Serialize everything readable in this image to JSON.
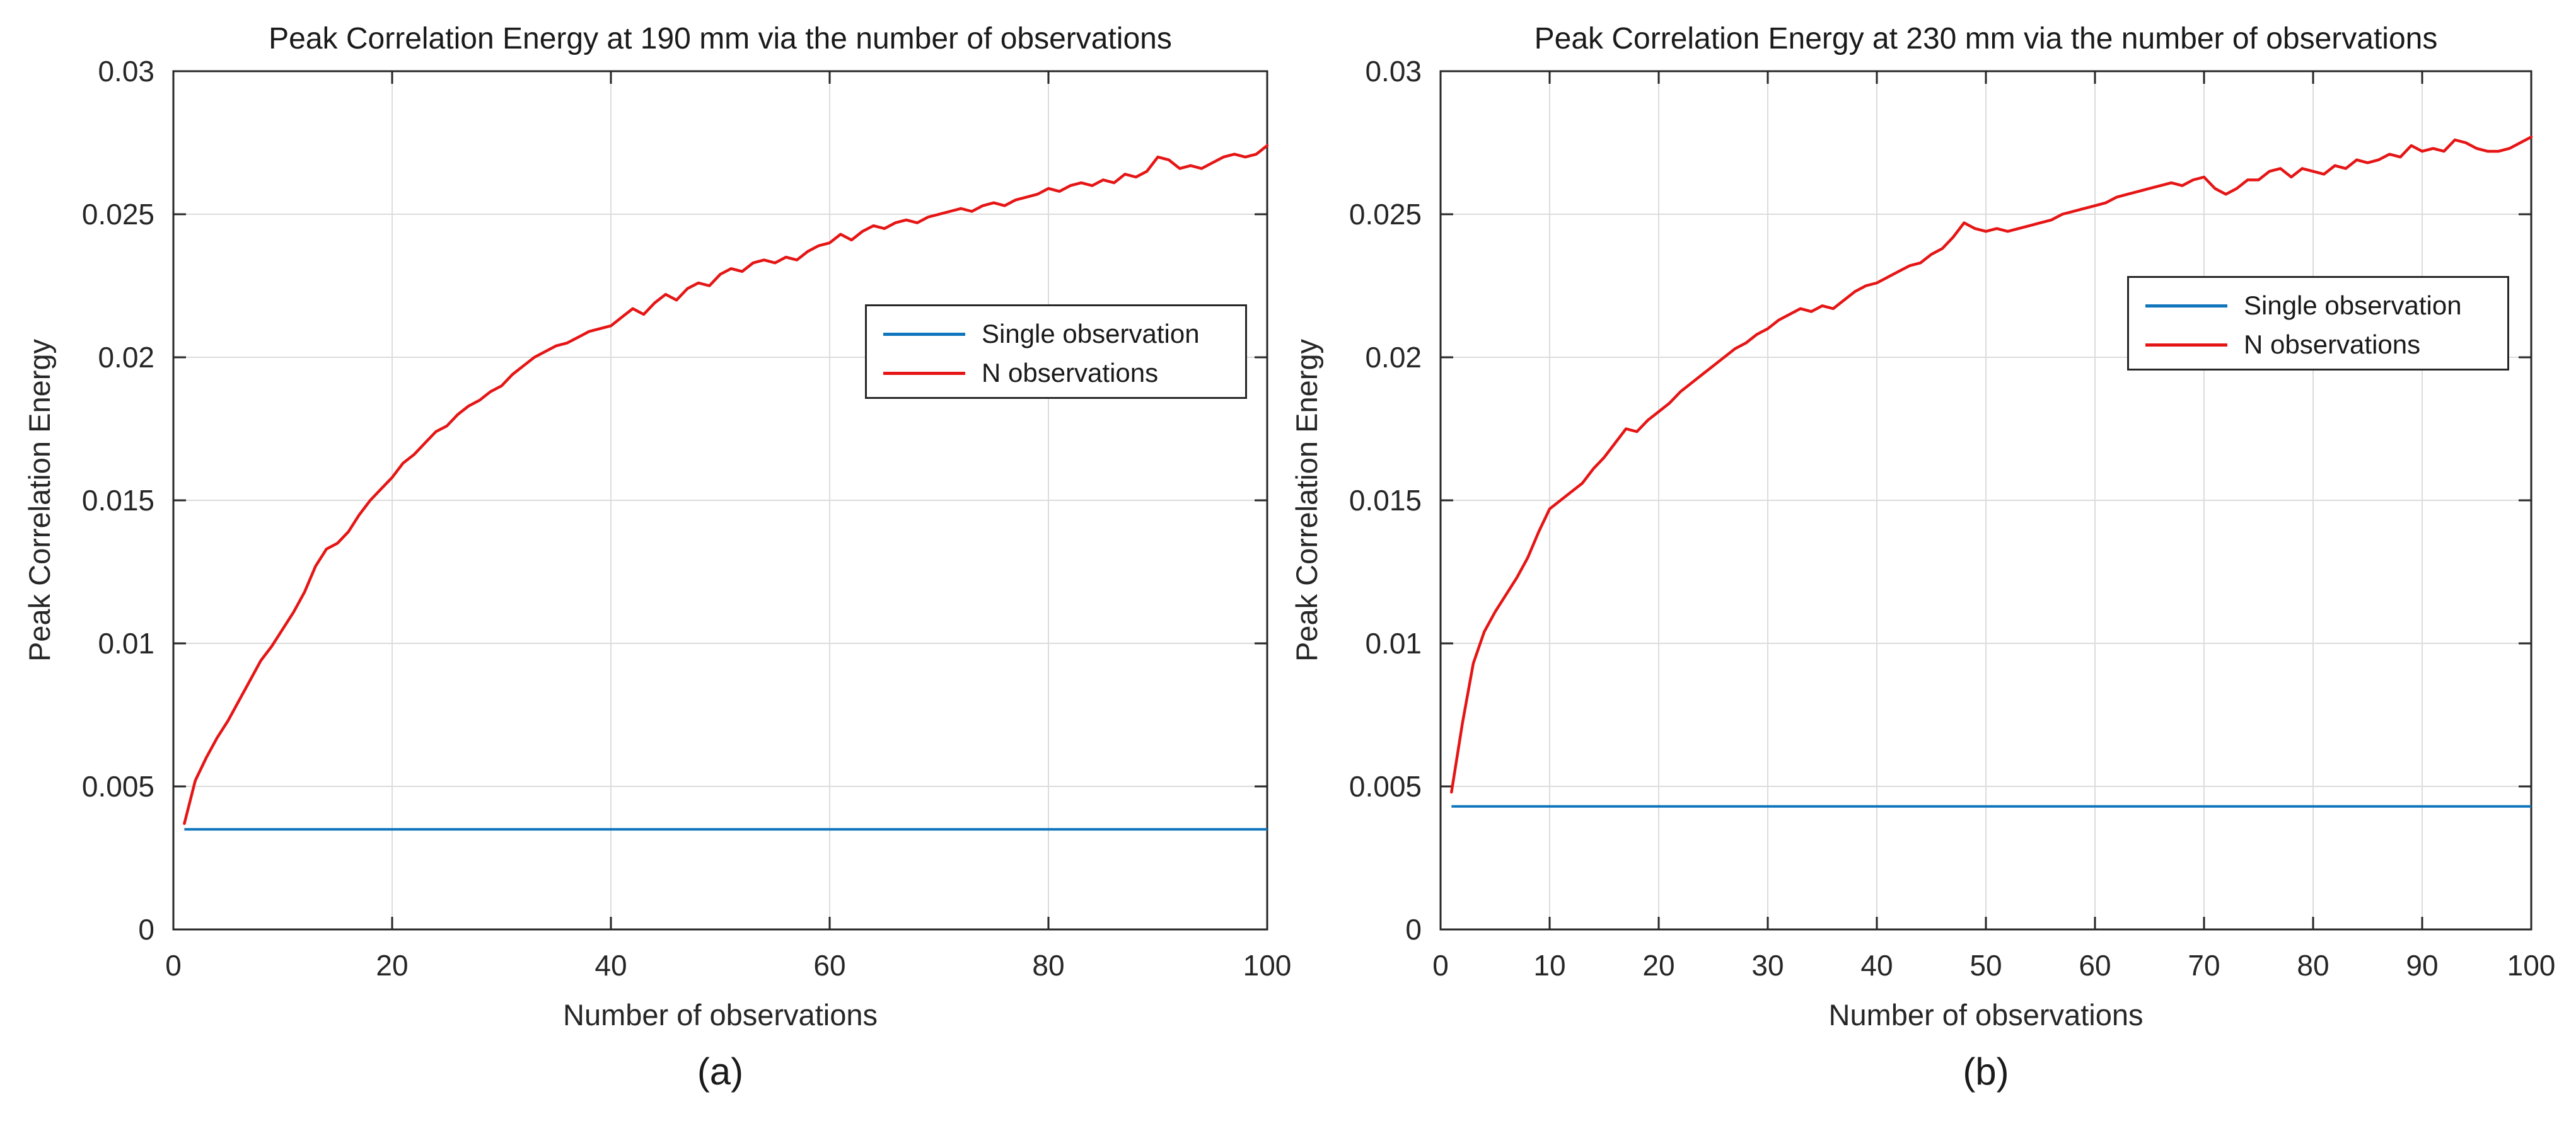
{
  "figure": {
    "background": "#ffffff",
    "axis_color": "#262626",
    "grid_color": "#dcdcdc",
    "text_color": "#1a1a1a"
  },
  "chart_data": [
    {
      "type": "line",
      "title": "Peak Correlation Energy at 190 mm via the number of observations",
      "xlabel": "Number of observations",
      "ylabel": "Peak Correlation Energy",
      "caption": "(a)",
      "xlim": [
        0,
        100
      ],
      "ylim": [
        0,
        0.03
      ],
      "grid": true,
      "xticks": [
        0,
        20,
        40,
        60,
        80,
        100
      ],
      "xtick_labels": [
        "0",
        "20",
        "40",
        "60",
        "80",
        "100"
      ],
      "yticks": [
        0,
        0.005,
        0.01,
        0.015,
        0.02,
        0.025,
        0.03
      ],
      "ytick_labels": [
        "0",
        "0.005",
        "0.01",
        "0.015",
        "0.02",
        "0.025",
        "0.03"
      ],
      "legend": {
        "position": "right-middle",
        "items": [
          {
            "label": "Single observation",
            "color": "#0f75bc"
          },
          {
            "label": "N observations",
            "color": "#e61515"
          }
        ]
      },
      "series": [
        {
          "name": "Single observation",
          "type": "hline",
          "color": "#0f75bc",
          "value": 0.0035,
          "x_start": 1,
          "x_end": 100
        },
        {
          "name": "N observations",
          "type": "line",
          "color": "#e61515",
          "x_start": 1,
          "values": [
            0.0037,
            0.0052,
            0.006,
            0.0067,
            0.0073,
            0.008,
            0.0087,
            0.0094,
            0.0099,
            0.0105,
            0.0111,
            0.0118,
            0.0127,
            0.0133,
            0.0135,
            0.0139,
            0.0145,
            0.015,
            0.0154,
            0.0158,
            0.0163,
            0.0166,
            0.017,
            0.0174,
            0.0176,
            0.018,
            0.0183,
            0.0185,
            0.0188,
            0.019,
            0.0194,
            0.0197,
            0.02,
            0.0202,
            0.0204,
            0.0205,
            0.0207,
            0.0209,
            0.021,
            0.0211,
            0.0214,
            0.0217,
            0.0215,
            0.0219,
            0.0222,
            0.022,
            0.0224,
            0.0226,
            0.0225,
            0.0229,
            0.0231,
            0.023,
            0.0233,
            0.0234,
            0.0233,
            0.0235,
            0.0234,
            0.0237,
            0.0239,
            0.024,
            0.0243,
            0.0241,
            0.0244,
            0.0246,
            0.0245,
            0.0247,
            0.0248,
            0.0247,
            0.0249,
            0.025,
            0.0251,
            0.0252,
            0.0251,
            0.0253,
            0.0254,
            0.0253,
            0.0255,
            0.0256,
            0.0257,
            0.0259,
            0.0258,
            0.026,
            0.0261,
            0.026,
            0.0262,
            0.0261,
            0.0264,
            0.0263,
            0.0265,
            0.027,
            0.0269,
            0.0266,
            0.0267,
            0.0266,
            0.0268,
            0.027,
            0.0271,
            0.027,
            0.0271,
            0.0274
          ]
        }
      ]
    },
    {
      "type": "line",
      "title": "Peak Correlation Energy at 230 mm via the number of observations",
      "xlabel": "Number of observations",
      "ylabel": "Peak Correlation Energy",
      "caption": "(b)",
      "xlim": [
        0,
        100
      ],
      "ylim": [
        0,
        0.03
      ],
      "grid": true,
      "xticks": [
        0,
        10,
        20,
        30,
        40,
        50,
        60,
        70,
        80,
        90,
        100
      ],
      "xtick_labels": [
        "0",
        "10",
        "20",
        "30",
        "40",
        "50",
        "60",
        "70",
        "80",
        "90",
        "100"
      ],
      "yticks": [
        0,
        0.005,
        0.01,
        0.015,
        0.02,
        0.025,
        0.03
      ],
      "ytick_labels": [
        "0",
        "0.005",
        "0.01",
        "0.015",
        "0.02",
        "0.025",
        "0.03"
      ],
      "legend": {
        "position": "right-upper",
        "items": [
          {
            "label": "Single observation",
            "color": "#0f75bc"
          },
          {
            "label": "N observations",
            "color": "#e61515"
          }
        ]
      },
      "series": [
        {
          "name": "Single observation",
          "type": "hline",
          "color": "#0f75bc",
          "value": 0.0043,
          "x_start": 1,
          "x_end": 100
        },
        {
          "name": "N observations",
          "type": "line",
          "color": "#e61515",
          "x_start": 1,
          "values": [
            0.0048,
            0.0072,
            0.0093,
            0.0104,
            0.0111,
            0.0117,
            0.0123,
            0.013,
            0.0139,
            0.0147,
            0.015,
            0.0153,
            0.0156,
            0.0161,
            0.0165,
            0.017,
            0.0175,
            0.0174,
            0.0178,
            0.0181,
            0.0184,
            0.0188,
            0.0191,
            0.0194,
            0.0197,
            0.02,
            0.0203,
            0.0205,
            0.0208,
            0.021,
            0.0213,
            0.0215,
            0.0217,
            0.0216,
            0.0218,
            0.0217,
            0.022,
            0.0223,
            0.0225,
            0.0226,
            0.0228,
            0.023,
            0.0232,
            0.0233,
            0.0236,
            0.0238,
            0.0242,
            0.0247,
            0.0245,
            0.0244,
            0.0245,
            0.0244,
            0.0245,
            0.0246,
            0.0247,
            0.0248,
            0.025,
            0.0251,
            0.0252,
            0.0253,
            0.0254,
            0.0256,
            0.0257,
            0.0258,
            0.0259,
            0.026,
            0.0261,
            0.026,
            0.0262,
            0.0263,
            0.0259,
            0.0257,
            0.0259,
            0.0262,
            0.0262,
            0.0265,
            0.0266,
            0.0263,
            0.0266,
            0.0265,
            0.0264,
            0.0267,
            0.0266,
            0.0269,
            0.0268,
            0.0269,
            0.0271,
            0.027,
            0.0274,
            0.0272,
            0.0273,
            0.0272,
            0.0276,
            0.0275,
            0.0273,
            0.0272,
            0.0272,
            0.0273,
            0.0275,
            0.0277
          ]
        }
      ]
    }
  ]
}
